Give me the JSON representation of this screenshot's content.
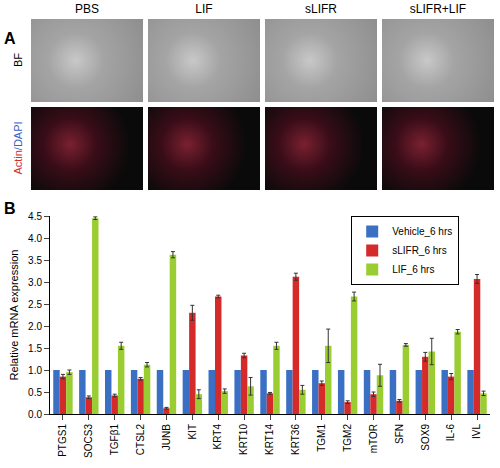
{
  "figure": {
    "panel_a": {
      "label": "A",
      "columns": [
        "PBS",
        "LIF",
        "sLIFR",
        "sLIFR+LIF"
      ],
      "rows": [
        {
          "parts": [
            {
              "text": "BF",
              "color": "#000000"
            }
          ]
        },
        {
          "parts": [
            {
              "text": "Actin",
              "color": "#d42a2a"
            },
            {
              "text": "/DAPI",
              "color": "#3a5fc4"
            }
          ]
        }
      ]
    }
  },
  "chart_data": {
    "type": "bar",
    "panel_label": "B",
    "y_label": "Relative mRNA expression",
    "categories": [
      "PTGS1",
      "SOCS3",
      "TGFβ1",
      "CTSL2",
      "JUNB",
      "KIT",
      "KRT4",
      "KRT10",
      "KRT14",
      "KRT36",
      "TGM1",
      "TGM2",
      "mTOR",
      "SFN",
      "SOX9",
      "IL-6",
      "IVL"
    ],
    "series": [
      {
        "name": "Vehicle_6 hrs",
        "color": "#3a6fc4",
        "values": [
          1,
          1,
          1,
          1,
          1,
          1,
          1,
          1,
          1,
          1,
          1,
          1,
          1,
          1,
          1,
          1,
          1
        ]
      },
      {
        "name": "sLIFR_6 hrs",
        "color": "#d42a2a",
        "values": [
          0.85,
          0.38,
          0.42,
          0.8,
          0.13,
          2.3,
          2.67,
          1.33,
          0.47,
          3.12,
          0.7,
          0.27,
          0.45,
          0.3,
          1.3,
          0.85,
          3.07
        ],
        "errors": [
          0.05,
          0.03,
          0.03,
          0.03,
          0.02,
          0.17,
          0.03,
          0.05,
          0.02,
          0.08,
          0.05,
          0.03,
          0.05,
          0.03,
          0.1,
          0.07,
          0.1
        ]
      },
      {
        "name": "LIF_6 hrs",
        "color": "#9acd32",
        "values": [
          0.95,
          4.45,
          1.55,
          1.12,
          3.62,
          0.45,
          0.52,
          0.63,
          1.55,
          0.55,
          1.55,
          2.67,
          0.88,
          1.57,
          1.42,
          1.87,
          0.47
        ],
        "errors": [
          0.05,
          0.03,
          0.08,
          0.05,
          0.07,
          0.1,
          0.05,
          0.2,
          0.08,
          0.1,
          0.38,
          0.1,
          0.25,
          0.03,
          0.3,
          0.05,
          0.05
        ]
      }
    ],
    "ylim": [
      0,
      4.5
    ],
    "yticks": [
      {
        "value": 0,
        "label": "0.0"
      },
      0.5,
      {
        "value": 1,
        "label": "1.0"
      },
      1.5,
      {
        "value": 2,
        "label": "2.0"
      },
      2.5,
      {
        "value": 3,
        "label": "3.0"
      },
      3.5,
      {
        "value": 4,
        "label": "4.0"
      },
      4.5
    ],
    "grid": false,
    "legend": "upper right"
  }
}
